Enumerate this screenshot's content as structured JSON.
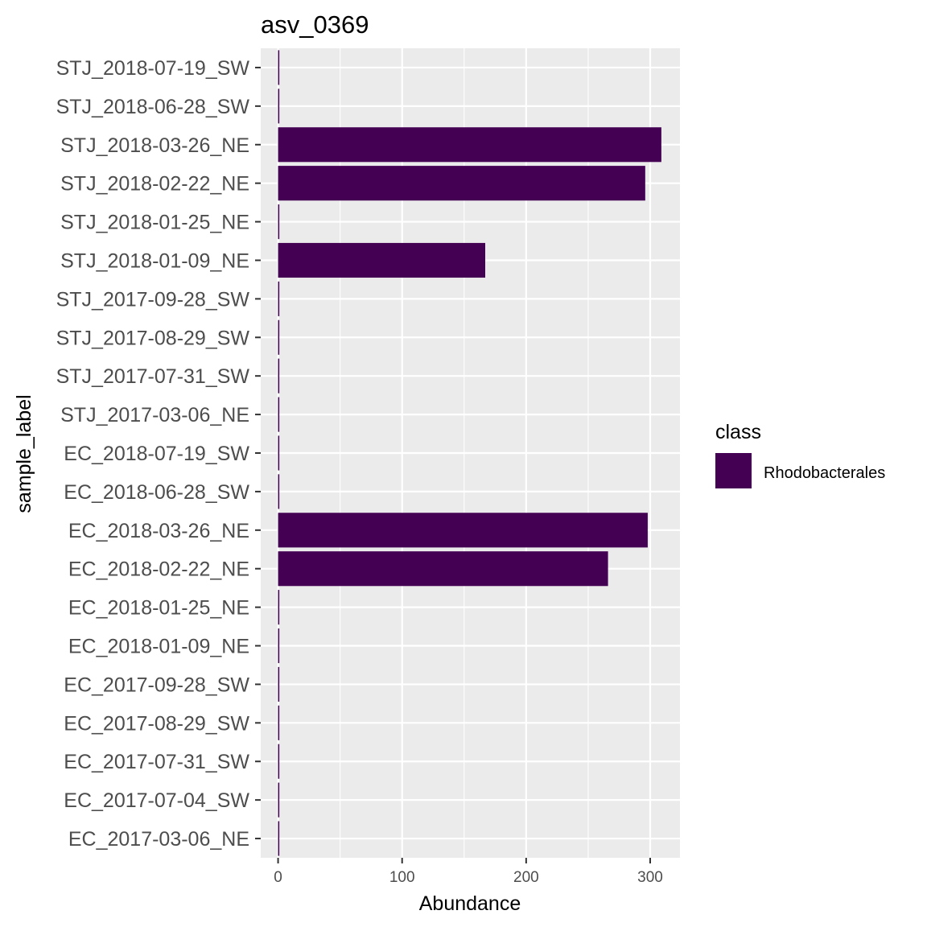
{
  "chart_data": {
    "type": "bar",
    "orientation": "horizontal",
    "title": "asv_0369",
    "xlabel": "Abundance",
    "ylabel": "sample_label",
    "xlim": [
      0,
      320
    ],
    "xticks": [
      0,
      100,
      200,
      300
    ],
    "grid": true,
    "legend": {
      "title": "class",
      "placement": "right",
      "entries": [
        {
          "name": "Rhodobacterales",
          "color": "#440154"
        }
      ]
    },
    "categories": [
      "STJ_2018-07-19_SW",
      "STJ_2018-06-28_SW",
      "STJ_2018-03-26_NE",
      "STJ_2018-02-22_NE",
      "STJ_2018-01-25_NE",
      "STJ_2018-01-09_NE",
      "STJ_2017-09-28_SW",
      "STJ_2017-08-29_SW",
      "STJ_2017-07-31_SW",
      "STJ_2017-03-06_NE",
      "EC_2018-07-19_SW",
      "EC_2018-06-28_SW",
      "EC_2018-03-26_NE",
      "EC_2018-02-22_NE",
      "EC_2018-01-25_NE",
      "EC_2018-01-09_NE",
      "EC_2017-09-28_SW",
      "EC_2017-08-29_SW",
      "EC_2017-07-31_SW",
      "EC_2017-07-04_SW",
      "EC_2017-03-06_NE"
    ],
    "series": [
      {
        "name": "Rhodobacterales",
        "color": "#440154",
        "values": [
          1,
          1,
          309,
          296,
          1,
          167,
          1,
          1,
          1,
          1,
          1,
          1,
          298,
          266,
          1,
          1,
          1,
          1,
          1,
          1,
          1
        ]
      }
    ]
  }
}
